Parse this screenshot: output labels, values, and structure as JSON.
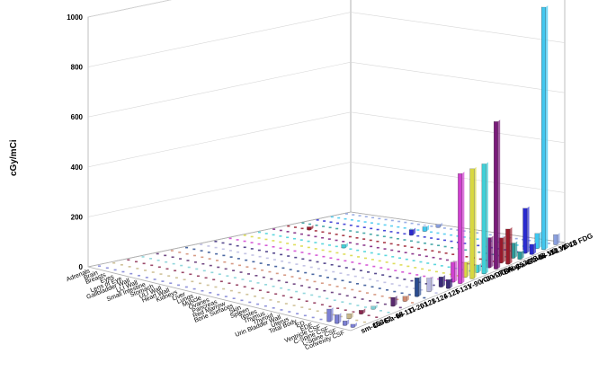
{
  "chart_data": {
    "type": "bar3d",
    "ylabel": "cGy/mCi",
    "ylim": [
      0,
      1000
    ],
    "yticks": [
      0,
      200,
      400,
      600,
      800,
      1000
    ],
    "organs": [
      "Adrenals",
      "Brain",
      "Breasts",
      "Eyes",
      "Lens of Eye",
      "Gallbladder Wall",
      "LLI Wall",
      "Small Intestine",
      "Stomach",
      "ULI Wall",
      "Heart Wall",
      "Kidneys",
      "Liver",
      "Lungs",
      "Muscle",
      "Ovaries",
      "Pancreas",
      "Red Marrow",
      "Bone Surfaces",
      "Skin",
      "Spleen",
      "Testes",
      "Thymus",
      "Thyroid",
      "Urin Bladder Wall",
      "Uterus",
      "Total Body",
      "ED",
      "EDE",
      "Ventricle CSF",
      "C-Spine CSF",
      "L-Spine CSF",
      "Convexity CSF"
    ],
    "series_labels": [
      "sm-153",
      "Ga-67",
      "Ga-68",
      "In-111",
      "Tl-201",
      "I-123",
      "I-124",
      "I-125",
      "I-131",
      "Y-90 CI",
      "Y-90 DTPA",
      "Y-90 Aby",
      "Sm-153 VS",
      "Ga-67 VS",
      "Ga-68 VS",
      "In-111 VS",
      "I-131 VS",
      "F-18 FDG"
    ],
    "series_colors": [
      "#7b7fd4",
      "#c8b88a",
      "#8a2a50",
      "#7fd0d6",
      "#5a2a6e",
      "#d08a70",
      "#2a4c90",
      "#b8b8e0",
      "#3a2a7a",
      "#d040d0",
      "#d8d840",
      "#40d0d8",
      "#7a1a7a",
      "#9a1a2a",
      "#2a9a9a",
      "#2a2ad0",
      "#40c8f0",
      "#8aa0e0"
    ],
    "values": [
      {
        "series": 0,
        "organ": 29,
        "value": 50
      },
      {
        "series": 0,
        "organ": 30,
        "value": 35
      },
      {
        "series": 0,
        "organ": 31,
        "value": 18
      },
      {
        "series": 0,
        "organ": 32,
        "value": 12
      },
      {
        "series": 1,
        "organ": 30,
        "value": 20
      },
      {
        "series": 2,
        "organ": 30,
        "value": 15
      },
      {
        "series": 3,
        "organ": 30,
        "value": 12
      },
      {
        "series": 4,
        "organ": 31,
        "value": 35
      },
      {
        "series": 5,
        "organ": 31,
        "value": 20
      },
      {
        "series": 6,
        "organ": 31,
        "value": 75
      },
      {
        "series": 7,
        "organ": 31,
        "value": 55
      },
      {
        "series": 8,
        "organ": 31,
        "value": 40
      },
      {
        "series": 8,
        "organ": 32,
        "value": 35
      },
      {
        "series": 9,
        "organ": 31,
        "value": 80
      },
      {
        "series": 9,
        "organ": 32,
        "value": 440
      },
      {
        "series": 10,
        "organ": 31,
        "value": 60
      },
      {
        "series": 10,
        "organ": 32,
        "value": 440
      },
      {
        "series": 11,
        "organ": 31,
        "value": 30
      },
      {
        "series": 11,
        "organ": 32,
        "value": 440
      },
      {
        "series": 12,
        "organ": 31,
        "value": 120
      },
      {
        "series": 12,
        "organ": 32,
        "value": 590
      },
      {
        "series": 13,
        "organ": 31,
        "value": 100
      },
      {
        "series": 13,
        "organ": 32,
        "value": 140
      },
      {
        "series": 14,
        "organ": 31,
        "value": 60
      },
      {
        "series": 14,
        "organ": 32,
        "value": 30
      },
      {
        "series": 15,
        "organ": 31,
        "value": 180
      },
      {
        "series": 15,
        "organ": 32,
        "value": 40
      },
      {
        "series": 16,
        "organ": 32,
        "value": 970
      },
      {
        "series": 16,
        "organ": 31,
        "value": 60
      },
      {
        "series": 17,
        "organ": 32,
        "value": 40
      },
      {
        "series": 15,
        "organ": 14,
        "value": 22
      },
      {
        "series": 16,
        "organ": 14,
        "value": 18
      },
      {
        "series": 17,
        "organ": 14,
        "value": 12
      },
      {
        "series": 11,
        "organ": 12,
        "value": 14
      },
      {
        "series": 13,
        "organ": 3,
        "value": 12
      }
    ]
  }
}
